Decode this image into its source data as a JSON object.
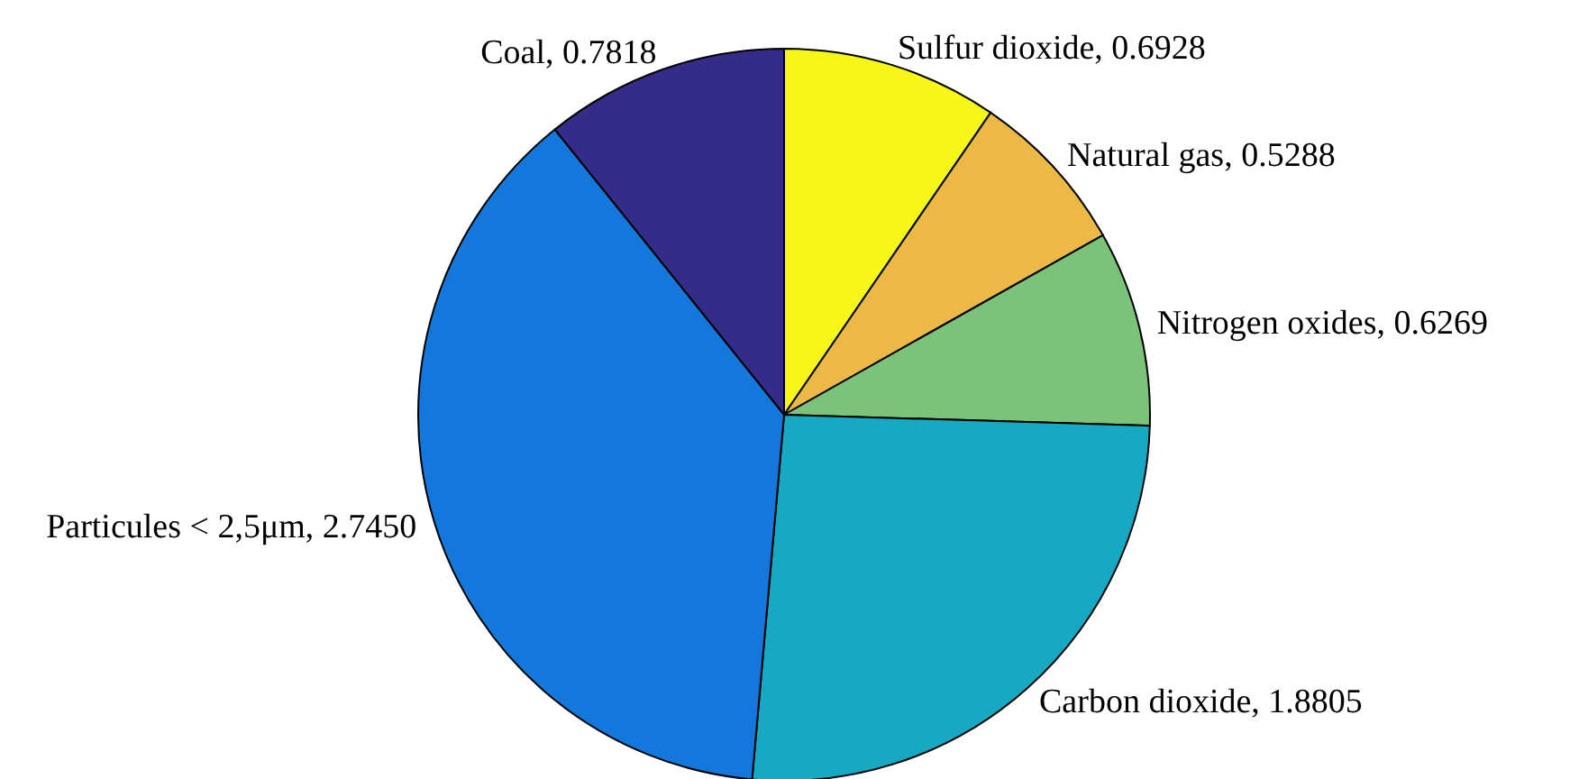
{
  "chart_data": {
    "type": "pie",
    "categories": [
      "Sulfur dioxide",
      "Natural gas",
      "Nitrogen oxides",
      "Carbon dioxide",
      "Particules < 2,5μm",
      "Coal"
    ],
    "values": [
      0.6928,
      0.5288,
      0.6269,
      1.8805,
      2.745,
      0.7818
    ],
    "value_labels": [
      "0.6928",
      "0.5288",
      "0.6269",
      "1.8805",
      "2.7450",
      "0.7818"
    ],
    "colors": [
      "#f6f618",
      "#ecb846",
      "#7cc37a",
      "#17a8c2",
      "#1477dc",
      "#352b88"
    ]
  }
}
